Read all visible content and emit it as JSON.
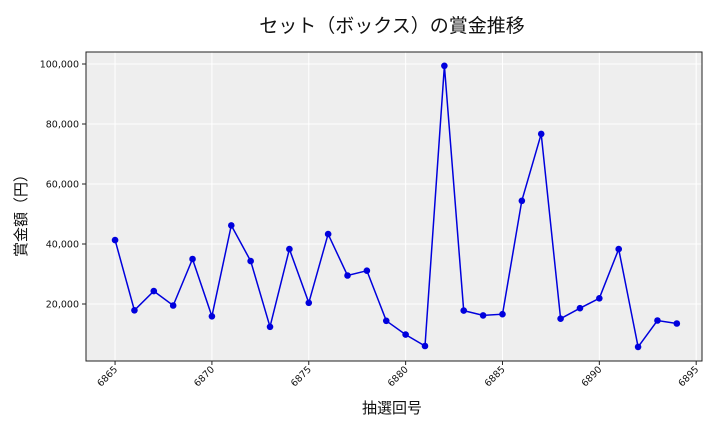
{
  "chart_data": {
    "type": "line",
    "title": "セット（ボックス）の賞金推移",
    "xlabel": "抽選回号",
    "ylabel": "賞金額（円）",
    "xlim": [
      6863.5,
      6895.3
    ],
    "ylim": [
      1000,
      104000
    ],
    "xticks": [
      6865,
      6870,
      6875,
      6880,
      6885,
      6890,
      6895
    ],
    "xtick_labels": [
      "6865",
      "6870",
      "6875",
      "6880",
      "6885",
      "6890",
      "6895"
    ],
    "yticks": [
      20000,
      40000,
      60000,
      80000,
      100000
    ],
    "ytick_labels": [
      "20,000",
      "40,000",
      "60,000",
      "80,000",
      "100,000"
    ],
    "grid": true,
    "colors": {
      "line": "#0000dd",
      "marker": "#0000dd",
      "plot_bg": "#eeeeee",
      "grid": "#ffffff"
    },
    "series": [
      {
        "x": [
          6865,
          6866,
          6867,
          6868,
          6869,
          6870,
          6871,
          6872,
          6873,
          6874,
          6875,
          6876,
          6877,
          6878,
          6879,
          6880,
          6881,
          6882,
          6883,
          6884,
          6885,
          6886,
          6887,
          6888,
          6889,
          6890,
          6891,
          6892,
          6893,
          6894
        ],
        "values": [
          41300,
          17900,
          24300,
          19500,
          35000,
          15900,
          46200,
          34300,
          12400,
          38300,
          20400,
          43300,
          29500,
          31100,
          14400,
          9800,
          6000,
          99400,
          17800,
          16200,
          16600,
          54400,
          76700,
          15100,
          18600,
          21900,
          38300,
          5700,
          14500,
          13500
        ]
      }
    ]
  }
}
